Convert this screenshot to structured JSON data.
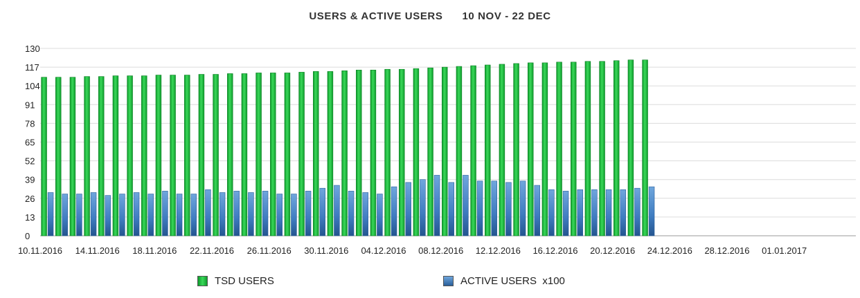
{
  "chart_data": {
    "type": "bar",
    "title": "USERS & ACTIVE USERS",
    "subtitle": "10 NOV - 22 DEC",
    "xlabel": "",
    "ylabel": "",
    "ylim": [
      0,
      130
    ],
    "yticks": [
      0,
      13,
      26,
      39,
      52,
      65,
      78,
      91,
      104,
      117,
      130
    ],
    "grid": true,
    "legend_position": "bottom",
    "xtick_labels": [
      "10.11.2016",
      "14.11.2016",
      "18.11.2016",
      "22.11.2016",
      "26.11.2016",
      "30.11.2016",
      "04.12.2016",
      "08.12.2016",
      "12.12.2016",
      "16.12.2016",
      "20.12.2016",
      "24.12.2016",
      "28.12.2016",
      "01.01.2017"
    ],
    "categories": [
      "10.11.2016",
      "11.11.2016",
      "12.11.2016",
      "13.11.2016",
      "14.11.2016",
      "15.11.2016",
      "16.11.2016",
      "17.11.2016",
      "18.11.2016",
      "19.11.2016",
      "20.11.2016",
      "21.11.2016",
      "22.11.2016",
      "23.11.2016",
      "24.11.2016",
      "25.11.2016",
      "26.11.2016",
      "27.11.2016",
      "28.11.2016",
      "29.11.2016",
      "30.11.2016",
      "01.12.2016",
      "02.12.2016",
      "03.12.2016",
      "04.12.2016",
      "05.12.2016",
      "06.12.2016",
      "07.12.2016",
      "08.12.2016",
      "09.12.2016",
      "10.12.2016",
      "11.12.2016",
      "12.12.2016",
      "13.12.2016",
      "14.12.2016",
      "15.12.2016",
      "16.12.2016",
      "17.12.2016",
      "18.12.2016",
      "19.12.2016",
      "20.12.2016",
      "21.12.2016",
      "22.12.2016",
      "23.12.2016",
      "24.12.2016",
      "25.12.2016",
      "26.12.2016",
      "27.12.2016",
      "28.12.2016",
      "29.12.2016",
      "30.12.2016",
      "31.12.2016",
      "01.01.2017",
      "02.01.2017",
      "03.01.2017",
      "04.01.2017",
      "05.01.2017"
    ],
    "series": [
      {
        "name": "TSD USERS",
        "color": "#1ec03c",
        "values": [
          110,
          110,
          110,
          110.5,
          110.5,
          111,
          111,
          111,
          111.5,
          111.5,
          111.5,
          112,
          112,
          112.5,
          112.5,
          113,
          113,
          113,
          113.5,
          114,
          114,
          114.5,
          115,
          115,
          115.5,
          115.5,
          116,
          116.5,
          117,
          117.5,
          118,
          118.5,
          119,
          119.5,
          120,
          120,
          120.5,
          120.5,
          121,
          121,
          121.5,
          122,
          122,
          null,
          null,
          null,
          null,
          null,
          null,
          null,
          null,
          null,
          null,
          null,
          null,
          null,
          null
        ]
      },
      {
        "name": "ACTIVE USERS  x100",
        "color": "#4a86c8",
        "values": [
          30,
          29,
          29,
          30,
          28,
          29,
          30,
          29,
          31,
          29,
          29,
          32,
          30,
          31,
          30,
          31,
          29,
          29,
          31,
          33,
          35,
          31,
          30,
          29,
          34,
          37,
          39,
          42,
          37,
          42,
          38,
          38,
          37,
          38,
          35,
          32,
          31,
          32,
          32,
          32,
          32,
          33,
          34,
          null,
          null,
          null,
          null,
          null,
          null,
          null,
          null,
          null,
          null,
          null,
          null,
          null,
          null
        ]
      }
    ]
  }
}
